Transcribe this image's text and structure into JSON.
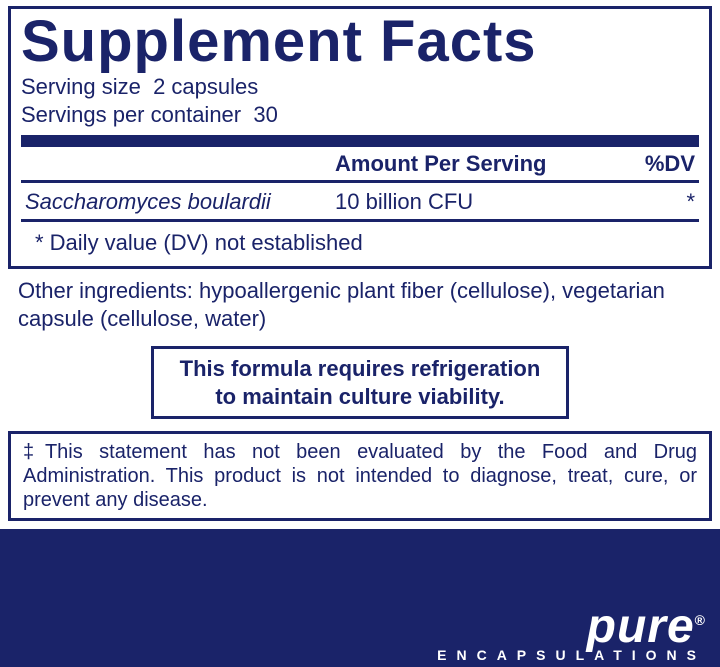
{
  "colors": {
    "primary": "#1a2369",
    "background": "#ffffff",
    "brand_text": "#ffffff"
  },
  "panel": {
    "title": "Supplement Facts",
    "serving_size_label": "Serving size",
    "serving_size_value": "2 capsules",
    "servings_per_container_label": "Servings per container",
    "servings_per_container_value": "30",
    "header_amount": "Amount Per Serving",
    "header_dv": "%DV",
    "ingredient_name": "Saccharomyces boulardii",
    "ingredient_amount": "10 billion CFU",
    "ingredient_dv": "*",
    "dv_footnote": "* Daily value (DV) not established"
  },
  "other_ingredients": "Other ingredients: hypoallergenic plant fiber (cellulose), vegetarian capsule (cellulose, water)",
  "refrigeration_line1": "This formula requires refrigeration",
  "refrigeration_line2": "to maintain culture viability.",
  "fda_disclaimer": "‡This statement has not been evaluated by the Food and Drug Administration. This product is not intended to diagnose, treat, cure, or prevent any disease.",
  "brand": {
    "name": "pure",
    "subtitle": "ENCAPSULATIONS",
    "reg": "®"
  }
}
